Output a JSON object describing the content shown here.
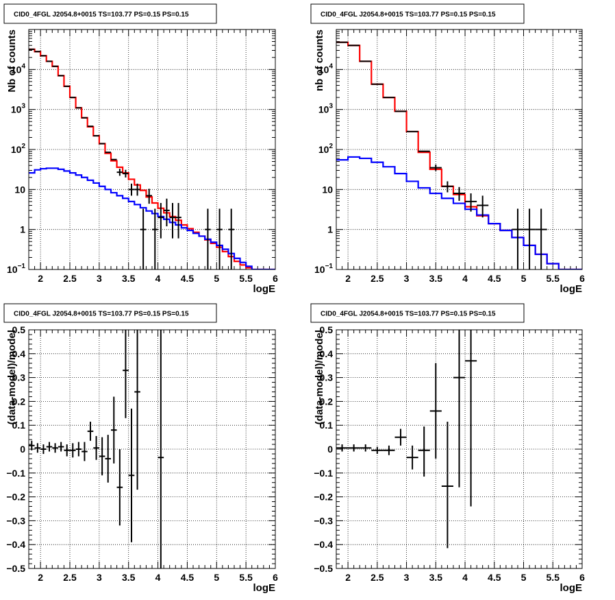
{
  "chart_data": [
    {
      "id": "top-left",
      "type": "line",
      "title": "CID0_4FGL J2054.8+0015 TS=103.77 PS=0.15 PS=0.15",
      "xlabel": "logE",
      "ylabel": "Nb of counts",
      "xlim": [
        1.8,
        6.0
      ],
      "ylim": [
        0.1,
        100000
      ],
      "yscale": "log",
      "grid": true,
      "xticks": [
        {
          "v": 2,
          "label": "2"
        },
        {
          "v": 2.5,
          "label": "2.5"
        },
        {
          "v": 3,
          "label": "3"
        },
        {
          "v": 3.5,
          "label": "3.5"
        },
        {
          "v": 4,
          "label": "4"
        },
        {
          "v": 4.5,
          "label": "4.5"
        },
        {
          "v": 5,
          "label": "5"
        },
        {
          "v": 5.5,
          "label": "5.5"
        },
        {
          "v": 6,
          "label": "6"
        }
      ],
      "yticks": [
        {
          "v": 0.1,
          "label": "10",
          "sup": "−1"
        },
        {
          "v": 1,
          "label": "1"
        },
        {
          "v": 10,
          "label": "10"
        },
        {
          "v": 100,
          "label": "10",
          "sup": "2"
        },
        {
          "v": 1000,
          "label": "10",
          "sup": "3"
        },
        {
          "v": 10000,
          "label": "10",
          "sup": "4"
        }
      ],
      "series": [
        {
          "kind": "hist",
          "color": "#ff0000",
          "edges": [
            1.8,
            1.9,
            2.0,
            2.1,
            2.2,
            2.3,
            2.4,
            2.5,
            2.6,
            2.7,
            2.8,
            2.9,
            3.0,
            3.1,
            3.2,
            3.3,
            3.4,
            3.5,
            3.6,
            3.7,
            3.8,
            3.9,
            4.0,
            4.1,
            4.2,
            4.3,
            4.4,
            4.5,
            4.6,
            4.7,
            4.8,
            4.9,
            5.0,
            5.1,
            5.2,
            5.3,
            5.4,
            5.5,
            5.6,
            5.7,
            5.8,
            5.9,
            6.0
          ],
          "values": [
            32000,
            28000,
            22000,
            16000,
            12000,
            7000,
            3800,
            2000,
            1100,
            620,
            370,
            220,
            140,
            80,
            52,
            36,
            26,
            18,
            13,
            9.5,
            6.5,
            4.6,
            3.4,
            2.6,
            2.1,
            1.7,
            1.3,
            1.05,
            0.85,
            0.68,
            0.55,
            0.45,
            0.36,
            0.28,
            0.21,
            0.16,
            0.13,
            0.11,
            0.1,
            0.1,
            0.1,
            0.1
          ]
        },
        {
          "kind": "hist",
          "color": "#0000ff",
          "edges": [
            1.8,
            1.9,
            2.0,
            2.1,
            2.2,
            2.3,
            2.4,
            2.5,
            2.6,
            2.7,
            2.8,
            2.9,
            3.0,
            3.1,
            3.2,
            3.3,
            3.4,
            3.5,
            3.6,
            3.7,
            3.8,
            3.9,
            4.0,
            4.1,
            4.2,
            4.3,
            4.4,
            4.5,
            4.6,
            4.7,
            4.8,
            4.9,
            5.0,
            5.1,
            5.2,
            5.3,
            5.4,
            5.5,
            5.6,
            5.7,
            5.8,
            5.9,
            6.0
          ],
          "values": [
            26,
            31,
            33,
            34,
            34,
            32,
            29,
            26,
            23,
            20,
            17,
            14.5,
            12,
            10,
            8.3,
            7,
            6,
            5,
            4.2,
            3.5,
            2.9,
            2.5,
            2.1,
            1.8,
            1.5,
            1.3,
            1.1,
            0.95,
            0.8,
            0.68,
            0.57,
            0.48,
            0.4,
            0.32,
            0.25,
            0.19,
            0.15,
            0.12,
            0.1,
            0.1,
            0.1,
            0.1
          ]
        },
        {
          "kind": "points",
          "color": "#000000",
          "x": [
            1.85,
            1.95,
            2.05,
            2.15,
            2.25,
            2.35,
            2.45,
            2.55,
            2.65,
            2.75,
            2.85,
            2.95,
            3.05,
            3.15,
            3.25,
            3.35,
            3.45,
            3.55,
            3.65,
            3.75,
            3.85,
            3.95,
            4.05,
            4.15,
            4.25,
            4.35,
            4.85,
            5.05,
            5.25
          ],
          "y": [
            32000,
            28000,
            22000,
            16000,
            12000,
            7000,
            3800,
            2000,
            1100,
            620,
            380,
            220,
            140,
            85,
            56,
            27,
            25,
            10,
            10,
            1,
            7,
            1,
            2,
            3,
            2,
            2,
            1,
            1,
            1
          ],
          "yerr_lo": [
            0,
            0,
            0,
            0,
            0,
            0,
            0,
            0,
            0,
            0,
            0,
            0,
            0,
            0,
            0,
            5,
            5,
            3,
            3,
            0.9,
            2.6,
            0.9,
            1.4,
            1.8,
            1.4,
            1.4,
            0.9,
            0.9,
            0.9
          ],
          "yerr_hi": [
            0,
            0,
            0,
            0,
            0,
            0,
            0,
            0,
            0,
            0,
            0,
            0,
            0,
            0,
            0,
            6,
            6,
            4,
            4,
            2.3,
            3.4,
            2.3,
            2.6,
            2.9,
            2.6,
            2.6,
            2.3,
            2.3,
            2.3
          ],
          "xerr": 0.05
        }
      ]
    },
    {
      "id": "top-right",
      "type": "line",
      "title": "CID0_4FGL J2054.8+0015 TS=103.77 PS=0.15 PS=0.15",
      "xlabel": "logE",
      "ylabel": "nb of counts",
      "xlim": [
        1.8,
        6.0
      ],
      "ylim": [
        0.1,
        100000
      ],
      "yscale": "log",
      "grid": true,
      "xticks": [
        {
          "v": 2,
          "label": "2"
        },
        {
          "v": 2.5,
          "label": "2.5"
        },
        {
          "v": 3,
          "label": "3"
        },
        {
          "v": 3.5,
          "label": "3.5"
        },
        {
          "v": 4,
          "label": "4"
        },
        {
          "v": 4.5,
          "label": "4.5"
        },
        {
          "v": 5,
          "label": "5"
        },
        {
          "v": 5.5,
          "label": "5.5"
        },
        {
          "v": 6,
          "label": "6"
        }
      ],
      "yticks": [
        {
          "v": 0.1,
          "label": "10",
          "sup": "−1"
        },
        {
          "v": 1,
          "label": "1"
        },
        {
          "v": 10,
          "label": "10"
        },
        {
          "v": 100,
          "label": "10",
          "sup": "2"
        },
        {
          "v": 1000,
          "label": "10",
          "sup": "3"
        },
        {
          "v": 10000,
          "label": "10",
          "sup": "4"
        }
      ],
      "series": [
        {
          "kind": "hist",
          "color": "#ff0000",
          "edges": [
            1.8,
            2.0,
            2.2,
            2.4,
            2.6,
            2.8,
            3.0,
            3.2,
            3.4,
            3.6,
            3.8,
            4.0,
            4.2,
            4.4,
            4.6,
            4.8,
            5.0,
            5.2,
            5.4,
            5.6,
            5.8,
            6.0
          ],
          "values": [
            48000,
            40000,
            16000,
            4300,
            2000,
            900,
            280,
            85,
            32,
            12,
            7.5,
            3.7,
            2.2,
            1.4,
            0.95,
            0.63,
            0.4,
            0.24,
            0.14,
            0.1,
            0.1
          ]
        },
        {
          "kind": "hist",
          "color": "#0000ff",
          "edges": [
            1.8,
            2.0,
            2.2,
            2.4,
            2.6,
            2.8,
            3.0,
            3.2,
            3.4,
            3.6,
            3.8,
            4.0,
            4.2,
            4.4,
            4.6,
            4.8,
            5.0,
            5.2,
            5.4,
            5.6,
            5.8,
            6.0
          ],
          "values": [
            55,
            65,
            60,
            48,
            37,
            25,
            16,
            11,
            8,
            6,
            4.5,
            3.2,
            2.3,
            1.4,
            0.95,
            0.63,
            0.4,
            0.24,
            0.14,
            0.1,
            0.1
          ]
        },
        {
          "kind": "points",
          "color": "#000000",
          "x": [
            1.9,
            2.1,
            2.3,
            2.5,
            2.7,
            2.9,
            3.1,
            3.3,
            3.5,
            3.7,
            3.9,
            4.1,
            4.3,
            4.9,
            5.1,
            5.3
          ],
          "y": [
            48000,
            40000,
            16000,
            4300,
            2000,
            900,
            280,
            90,
            35,
            12,
            8,
            5,
            4,
            1,
            1,
            1
          ],
          "yerr_lo": [
            0,
            0,
            0,
            0,
            0,
            0,
            0,
            0,
            6,
            3.5,
            2.8,
            2.2,
            2,
            0.9,
            0.9,
            0.9
          ],
          "yerr_hi": [
            0,
            0,
            0,
            0,
            0,
            0,
            0,
            0,
            7,
            4,
            3.5,
            3,
            3,
            2.3,
            2.3,
            2.3
          ],
          "xerr": 0.1
        }
      ]
    },
    {
      "id": "bottom-left",
      "type": "scatter",
      "title": "CID0_4FGL J2054.8+0015 TS=103.77 PS=0.15 PS=0.15",
      "xlabel": "logE",
      "ylabel": "(data-model)/model",
      "xlim": [
        1.8,
        6.0
      ],
      "ylim": [
        -0.5,
        0.5
      ],
      "yscale": "linear",
      "grid": true,
      "xticks": [
        {
          "v": 2,
          "label": "2"
        },
        {
          "v": 2.5,
          "label": "2.5"
        },
        {
          "v": 3,
          "label": "3"
        },
        {
          "v": 3.5,
          "label": "3.5"
        },
        {
          "v": 4,
          "label": "4"
        },
        {
          "v": 4.5,
          "label": "4.5"
        },
        {
          "v": 5,
          "label": "5"
        },
        {
          "v": 5.5,
          "label": "5.5"
        },
        {
          "v": 6,
          "label": "6"
        }
      ],
      "yticks": [
        {
          "v": -0.5,
          "label": "−0.5"
        },
        {
          "v": -0.4,
          "label": "−0.4"
        },
        {
          "v": -0.3,
          "label": "−0.3"
        },
        {
          "v": -0.2,
          "label": "−0.2"
        },
        {
          "v": -0.1,
          "label": "−0.1"
        },
        {
          "v": 0,
          "label": "0"
        },
        {
          "v": 0.1,
          "label": "0.1"
        },
        {
          "v": 0.2,
          "label": "0.2"
        },
        {
          "v": 0.3,
          "label": "0.3"
        },
        {
          "v": 0.4,
          "label": "0.4"
        },
        {
          "v": 0.5,
          "label": "0.5"
        }
      ],
      "series": [
        {
          "kind": "points",
          "color": "#000000",
          "x": [
            1.85,
            1.95,
            2.05,
            2.15,
            2.25,
            2.35,
            2.45,
            2.55,
            2.65,
            2.75,
            2.85,
            2.95,
            3.05,
            3.15,
            3.25,
            3.35,
            3.45,
            3.55,
            3.65,
            4.05
          ],
          "y": [
            0.015,
            0.005,
            0.0,
            0.01,
            0.005,
            0.01,
            -0.005,
            -0.005,
            0.0,
            -0.01,
            0.075,
            0.005,
            -0.03,
            -0.04,
            0.08,
            -0.16,
            0.33,
            -0.11,
            0.24,
            -0.035
          ],
          "yerr_lo": [
            0.02,
            0.02,
            0.02,
            0.02,
            0.02,
            0.02,
            0.025,
            0.03,
            0.03,
            0.04,
            0.04,
            0.05,
            0.08,
            0.1,
            0.14,
            0.16,
            0.2,
            0.28,
            0.41,
            0.5
          ],
          "yerr_hi": [
            0.02,
            0.02,
            0.02,
            0.02,
            0.02,
            0.02,
            0.025,
            0.03,
            0.03,
            0.04,
            0.04,
            0.05,
            0.08,
            0.1,
            0.14,
            0.16,
            0.2,
            0.28,
            0.3,
            0.55
          ],
          "xerr": 0.05
        }
      ]
    },
    {
      "id": "bottom-right",
      "type": "scatter",
      "title": "CID0_4FGL J2054.8+0015 TS=103.77 PS=0.15 PS=0.15",
      "xlabel": "logE",
      "ylabel": "(data-model)/model",
      "xlim": [
        1.8,
        6.0
      ],
      "ylim": [
        -0.5,
        0.5
      ],
      "yscale": "linear",
      "grid": true,
      "xticks": [
        {
          "v": 2,
          "label": "2"
        },
        {
          "v": 2.5,
          "label": "2.5"
        },
        {
          "v": 3,
          "label": "3"
        },
        {
          "v": 3.5,
          "label": "3.5"
        },
        {
          "v": 4,
          "label": "4"
        },
        {
          "v": 4.5,
          "label": "4.5"
        },
        {
          "v": 5,
          "label": "5"
        },
        {
          "v": 5.5,
          "label": "5.5"
        },
        {
          "v": 6,
          "label": "6"
        }
      ],
      "yticks": [
        {
          "v": -0.5,
          "label": "−0.5"
        },
        {
          "v": -0.4,
          "label": "−0.4"
        },
        {
          "v": -0.3,
          "label": "−0.3"
        },
        {
          "v": -0.2,
          "label": "−0.2"
        },
        {
          "v": -0.1,
          "label": "−0.1"
        },
        {
          "v": 0,
          "label": "0"
        },
        {
          "v": 0.1,
          "label": "0.1"
        },
        {
          "v": 0.2,
          "label": "0.2"
        },
        {
          "v": 0.3,
          "label": "0.3"
        },
        {
          "v": 0.4,
          "label": "0.4"
        },
        {
          "v": 0.5,
          "label": "0.5"
        }
      ],
      "series": [
        {
          "kind": "points",
          "color": "#000000",
          "x": [
            1.9,
            2.1,
            2.3,
            2.5,
            2.7,
            2.9,
            3.1,
            3.3,
            3.5,
            3.7,
            3.9,
            4.1
          ],
          "y": [
            0.005,
            0.005,
            0.005,
            -0.005,
            -0.005,
            0.05,
            -0.035,
            -0.005,
            0.16,
            -0.155,
            0.3,
            0.37
          ],
          "yerr_lo": [
            0.015,
            0.015,
            0.015,
            0.015,
            0.02,
            0.035,
            0.05,
            0.11,
            0.2,
            0.26,
            0.46,
            0.61
          ],
          "yerr_hi": [
            0.015,
            0.015,
            0.015,
            0.015,
            0.02,
            0.035,
            0.05,
            0.1,
            0.2,
            0.27,
            0.46,
            0.5
          ],
          "xerr": 0.1
        }
      ]
    }
  ]
}
